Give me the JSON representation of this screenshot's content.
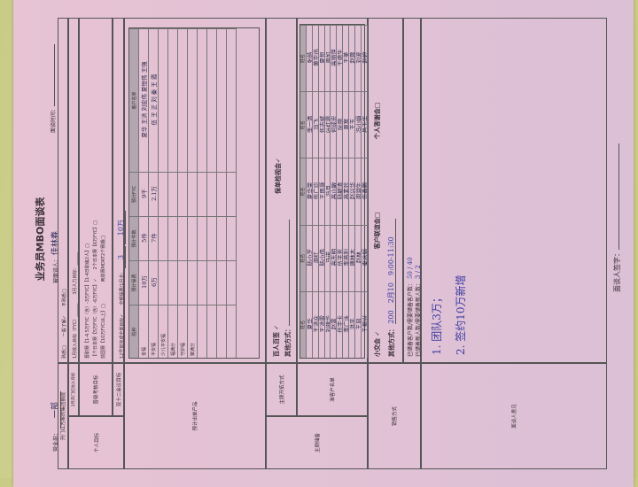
{
  "colors": {
    "paper": "#e7c3d4",
    "table_header": "#b3a6b0",
    "ink": "#3c3ca0",
    "background": "#c9cc86"
  },
  "title": "业务员MBO面谈表",
  "header": {
    "dept_label": "营业部：",
    "dept_value": "一部",
    "interviewee_label": "被面谈人：",
    "interviewee_value": "佳林春",
    "time_label": "面谈时间："
  },
  "personal": {
    "section_label": "个人目标",
    "row0": {
      "label": "开门红方案的集团额度",
      "options": "熟悉□　　一般了解✓　　不熟悉□"
    },
    "row1": {
      "label": "3月开门红收入目标",
      "text": "1月收入目标（FYC）______　　3月人力目标：______"
    },
    "row2": {
      "label": "晋级考核目标",
      "lines": [
        "晋职赛【1-4.5万FYC（含）-3万FYC】【1-4日职级2人】□",
        "【个日本赛【5万FYC（含）-6万FYC】✓　　2个日本赛【6万FYC】□",
        "前国赛【10万FYCUL上】□　　　　　两岸赛MDRT2个赛期□"
      ]
    },
    "row3": {
      "label": "双十二会议目标",
      "text": "12号前完成全单目标✓　　全额保费/1月业：",
      "v1": "3",
      "v2": "10万"
    }
  },
  "products": {
    "section_label": "预计出单产品",
    "headers": [
      "险种",
      "预计保费",
      "预计件数",
      "预计FYC",
      "客户名单"
    ],
    "rows": [
      [
        "金福",
        "10万",
        "5件",
        "9千",
        "夏华 王洪 刘宏伟 夏恒伟 王强"
      ],
      [
        "平安福",
        "6万",
        "7件",
        "2.1万",
        "伍 王 正 刘 秦 王 霞"
      ],
      [
        "少儿平安福",
        "",
        "",
        "",
        ""
      ],
      [
        "福满分",
        "",
        "",
        "",
        ""
      ],
      [
        "守护福",
        "",
        "",
        "",
        ""
      ],
      [
        "聚满分",
        "",
        "",
        "",
        ""
      ],
      [
        "",
        "",
        "",
        "",
        ""
      ],
      [
        "",
        "",
        "",
        "",
        ""
      ],
      [
        "",
        "",
        "",
        "",
        ""
      ],
      [
        "",
        "",
        "",
        "",
        ""
      ]
    ]
  },
  "reserve": {
    "section_label": "主顾储备",
    "method_label": "主顾开拓方式",
    "method_text": "百人百签 ✓",
    "method_other": "其他方式：",
    "method_review": "保单检视会✓",
    "list_label": "准客户名单",
    "list_header": "姓名",
    "columns": [
      [
        "夏华",
        "王洪众",
        "王洪雷",
        "刘建华",
        "赵雷",
        "伍宇卡",
        "李广泳",
        "洪平",
        "王风",
        "王振兴"
      ],
      [
        "陆小芝",
        "周红",
        "陆小伟",
        "马诺",
        "高东明",
        "伍平芳",
        "李燕利",
        "唐林木",
        "赵林",
        "秦冰娟"
      ],
      [
        "夏华荣",
        "伍广均",
        "王用灏",
        "冯月",
        "高山敏",
        "陆毓清",
        "高素珍",
        "赵兴华",
        "周润生",
        "伍鑫鹏"
      ],
      [
        "李一清",
        "冯飞",
        "伍志斌",
        "叶红霞",
        "何成宏",
        "阮丽",
        "周富",
        "王玉",
        "冯小娟",
        "吕玉华"
      ],
      [
        "张皓",
        "黄宇迅",
        "夏恒",
        "周如",
        "高丽萍",
        "王德生",
        "王美",
        "赵蓉",
        "刘波",
        "赵婷"
      ]
    ]
  },
  "sales": {
    "section_label": "销售方式",
    "small_meeting": "小交会 ✓",
    "client_party": "客户联谊会□",
    "thanks_party": "个人答谢会□",
    "other_label": "其他方式：",
    "other_value": "200　2月10　9:00-11:30",
    "reserve_clients_label": "已储备客户数/需要储备客户数：",
    "reserve_clients_value": "50 / 40",
    "reserve_new_label": "已储备新人数/需要储备新人数：",
    "reserve_new_value": "3 / 2"
  },
  "opinion": {
    "section_label": "面谈人意见",
    "notes": [
      "1. 团队3万；",
      "2. 签约10万新增"
    ],
    "signature_label": "面谈人签字："
  }
}
